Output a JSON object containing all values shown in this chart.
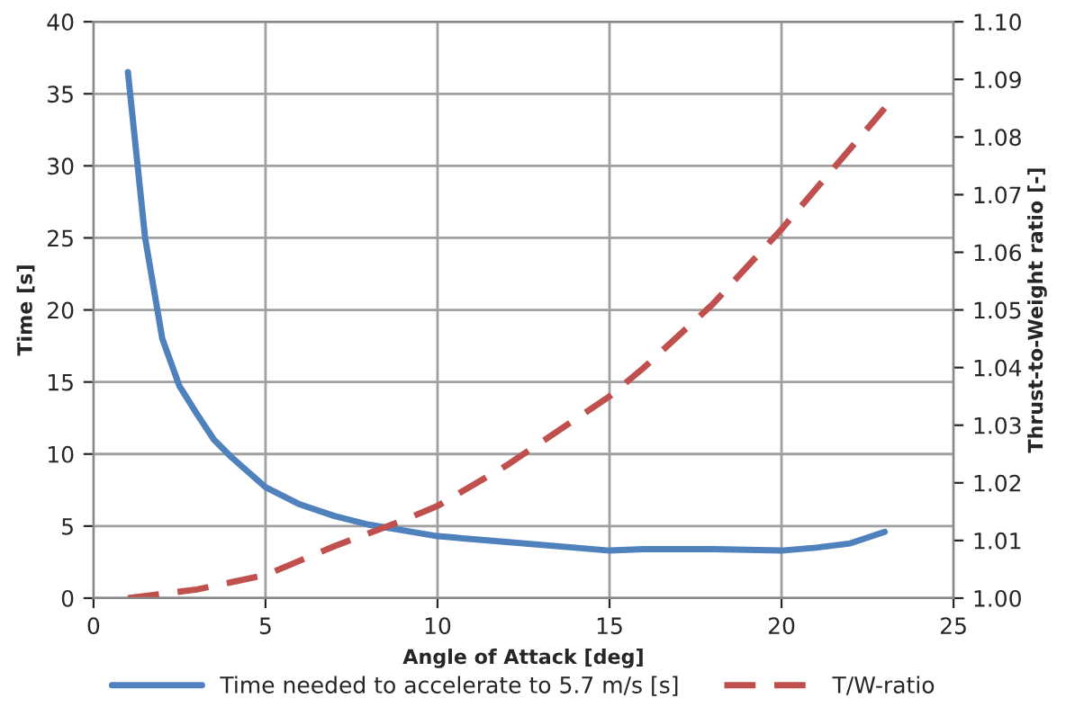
{
  "chart_data": {
    "type": "line",
    "xlabel": "Angle of Attack [deg]",
    "ylabel": "Time [s]",
    "y2label": "Thrust-to-Weight ratio [-]",
    "xlim": [
      0,
      25
    ],
    "xticks": [
      0,
      5,
      10,
      15,
      20,
      25
    ],
    "ylim": [
      0,
      40
    ],
    "yticks": [
      0,
      5,
      10,
      15,
      20,
      25,
      30,
      35,
      40
    ],
    "y2lim": [
      1.0,
      1.1
    ],
    "y2ticks": [
      {
        "value": 1.0,
        "label": "1.00"
      },
      {
        "value": 1.01,
        "label": "1.01"
      },
      {
        "value": 1.02,
        "label": "1.02"
      },
      {
        "value": 1.03,
        "label": "1.03"
      },
      {
        "value": 1.04,
        "label": "1.04"
      },
      {
        "value": 1.05,
        "label": "1.05"
      },
      {
        "value": 1.06,
        "label": "1.06"
      },
      {
        "value": 1.07,
        "label": "1.07"
      },
      {
        "value": 1.08,
        "label": "1.08"
      },
      {
        "value": 1.09,
        "label": "1.09"
      },
      {
        "value": 1.1,
        "label": "1.10"
      }
    ],
    "grid": true,
    "legend": "bottom",
    "marker": "none",
    "series": [
      {
        "name": "Time needed to accelerate to 5.7 m/s [s]",
        "color": "#4f81bd",
        "line_style": "solid",
        "x": [
          1,
          1.5,
          2,
          2.5,
          3,
          3.5,
          4,
          5,
          6,
          7,
          8,
          9,
          10,
          12,
          14,
          15,
          16,
          18,
          20,
          21,
          22,
          23
        ],
        "values": [
          36.5,
          25,
          18,
          14.7,
          12.8,
          11,
          9.8,
          7.7,
          6.5,
          5.7,
          5.1,
          4.7,
          4.3,
          3.9,
          3.5,
          3.3,
          3.4,
          3.4,
          3.3,
          3.5,
          3.8,
          4.6
        ]
      },
      {
        "name": "T/W-ratio",
        "color": "#c0504d",
        "line_style": "dashed",
        "axis": "y2",
        "x": [
          1,
          3,
          5,
          7,
          9,
          10,
          12,
          14,
          15,
          16,
          18,
          20,
          22,
          23
        ],
        "values": [
          1.0,
          1.0015,
          1.004,
          1.009,
          1.0135,
          1.016,
          1.023,
          1.031,
          1.035,
          1.04,
          1.051,
          1.064,
          1.078,
          1.085
        ]
      }
    ]
  }
}
